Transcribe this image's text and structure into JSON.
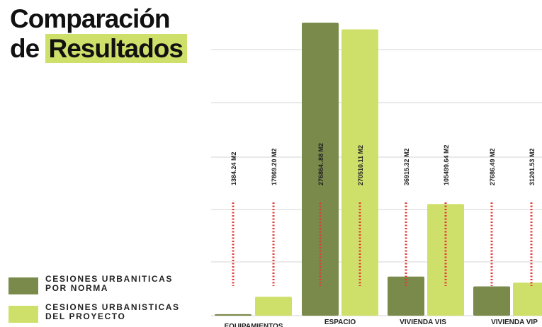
{
  "title": {
    "line1": "Comparación",
    "line2_prefix": "de",
    "line2_highlight": "Resultados"
  },
  "legend": [
    {
      "label": "CESIONES URBANITICAS POR NORMA",
      "color": "#7a8a4a"
    },
    {
      "label": "CESIONES URBANISTICAS DEL PROYECTO",
      "color": "#cfe06a"
    }
  ],
  "chart_data": {
    "type": "bar",
    "categories": [
      "EQUIPAMIENTOS",
      "ESPACIO",
      "VIVIENDA VIS",
      "VIVIENDA VIP"
    ],
    "series": [
      {
        "name": "CESIONES URBANITICAS POR NORMA",
        "values": [
          1384.24,
          276864.88,
          36915.32,
          27686.49
        ],
        "labels": [
          "1384.24 M2",
          "276864..88 M2",
          "36915.32 M2",
          "27686.49 M2"
        ],
        "color": "#7a8a4a"
      },
      {
        "name": "CESIONES URBANISTICAS DEL PROYECTO",
        "values": [
          17869.2,
          270510.11,
          105499.64,
          31201.53
        ],
        "labels": [
          "17869.20 M2",
          "270510.11 M2",
          "105499.64 M2",
          "31201.53 M2"
        ],
        "color": "#cfe06a"
      }
    ],
    "grid": true,
    "dashed_marker_color": "#e53935"
  }
}
